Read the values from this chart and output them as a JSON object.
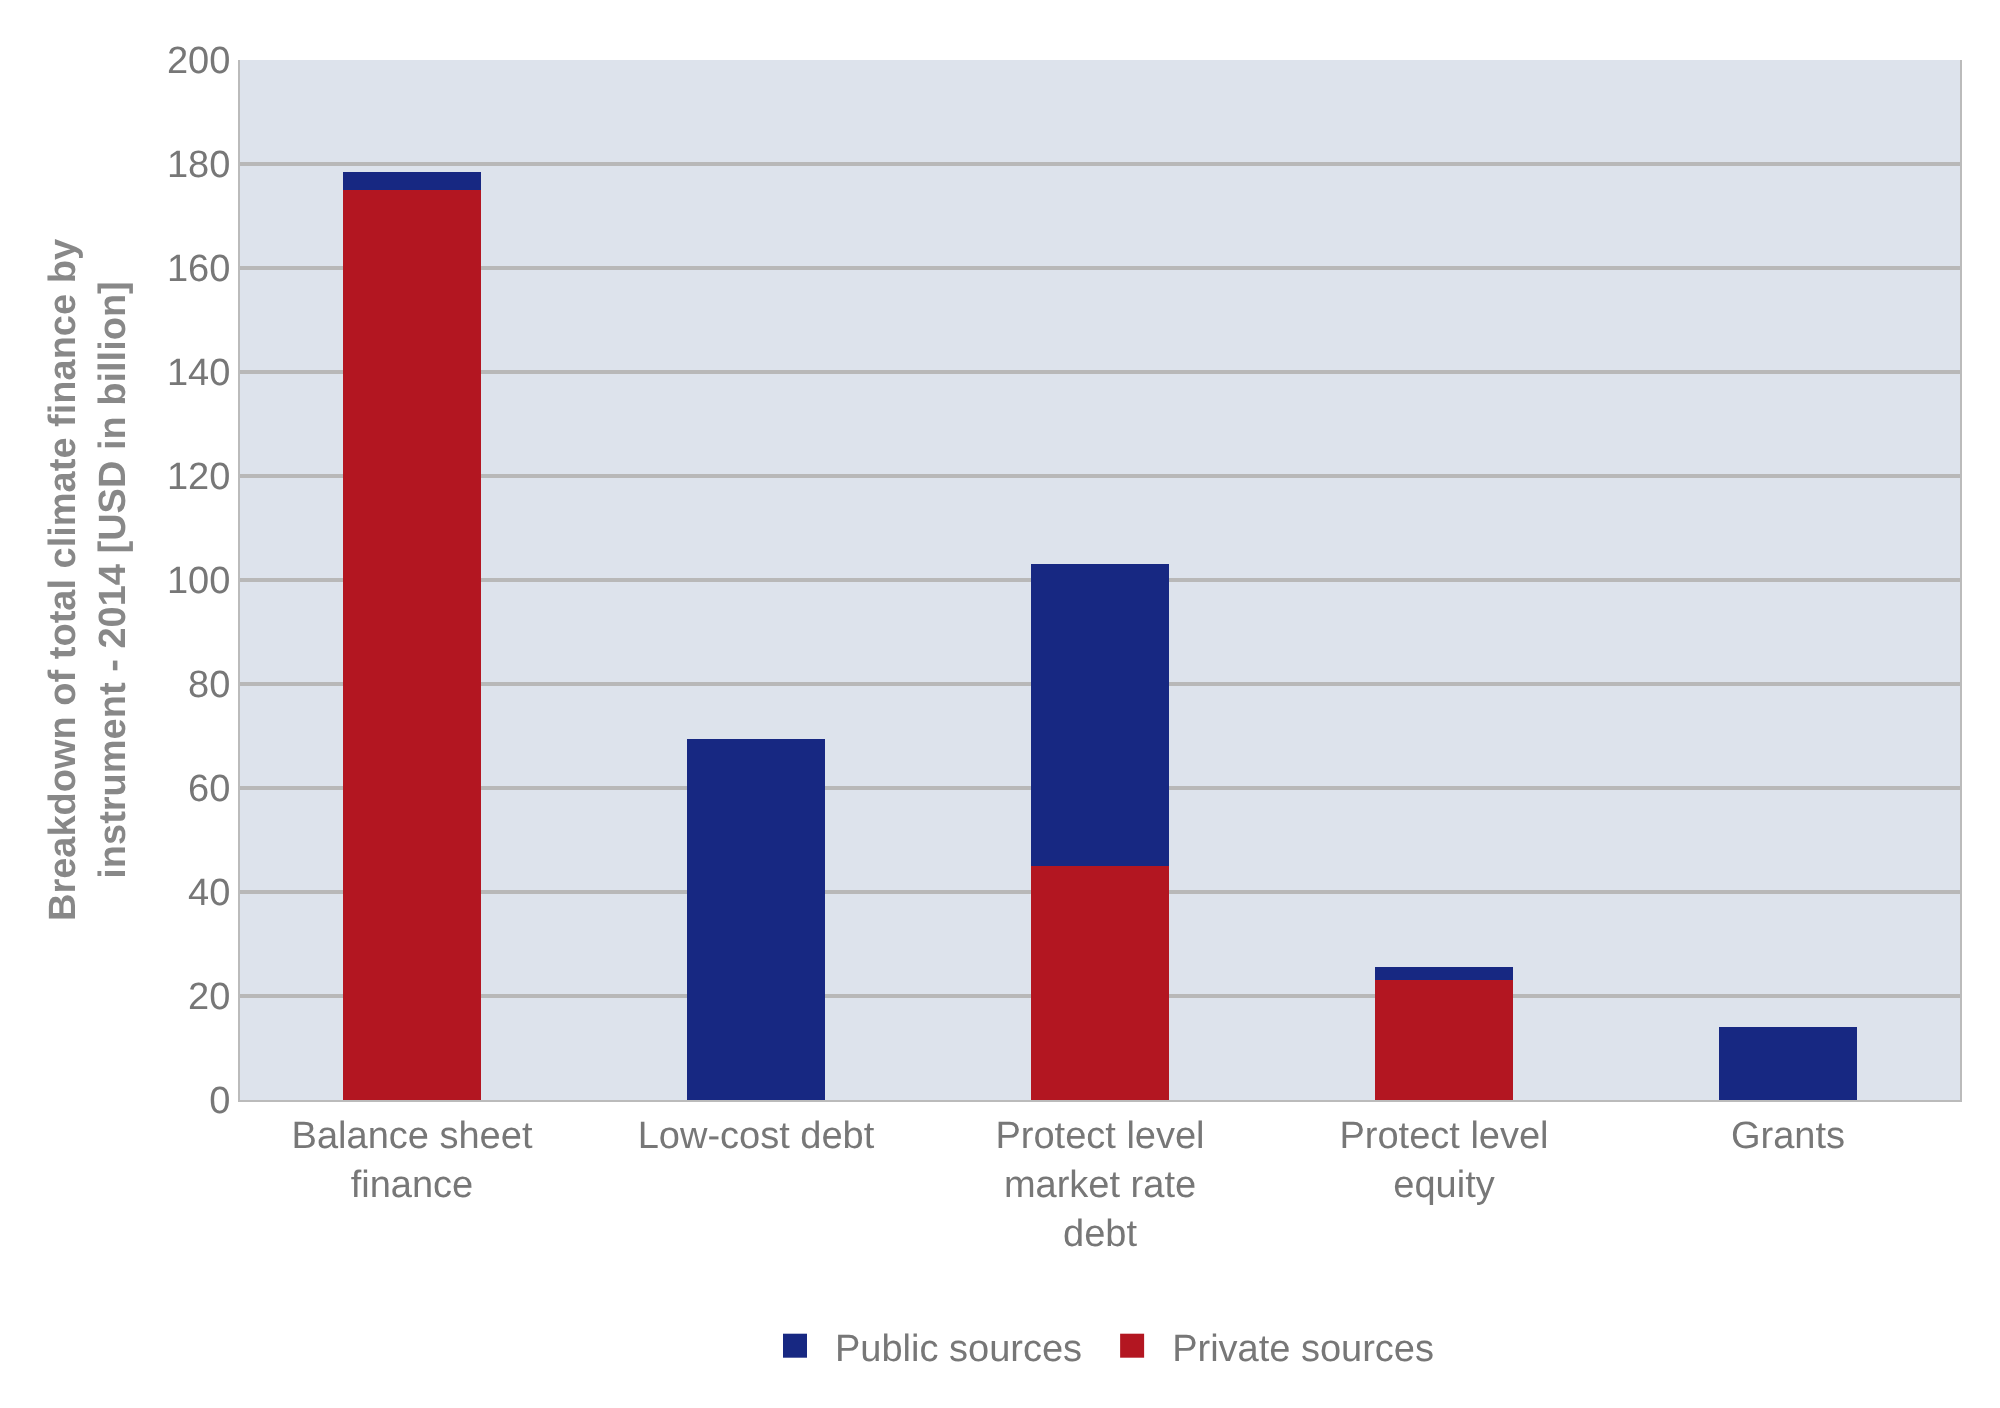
{
  "chart_data": {
    "type": "bar",
    "stacked": true,
    "ylabel": "Breakdown of total climate finance by\ninstrument - 2014 [USD in billion]",
    "categories": [
      "Balance sheet\nfinance",
      "Low-cost debt",
      "Protect level\nmarket rate\ndebt",
      "Protect level\nequity",
      "Grants"
    ],
    "series": [
      {
        "name": "Private sources",
        "color": "#b31621",
        "values": [
          175,
          0,
          45,
          23,
          0
        ]
      },
      {
        "name": "Public sources",
        "color": "#172882",
        "values": [
          3.5,
          69.5,
          58,
          2.5,
          14
        ]
      }
    ],
    "ylim": [
      0,
      200
    ],
    "yticks": [
      0,
      20,
      40,
      60,
      80,
      100,
      120,
      140,
      160,
      180,
      200
    ],
    "grid": "y",
    "legend": "bottom"
  }
}
